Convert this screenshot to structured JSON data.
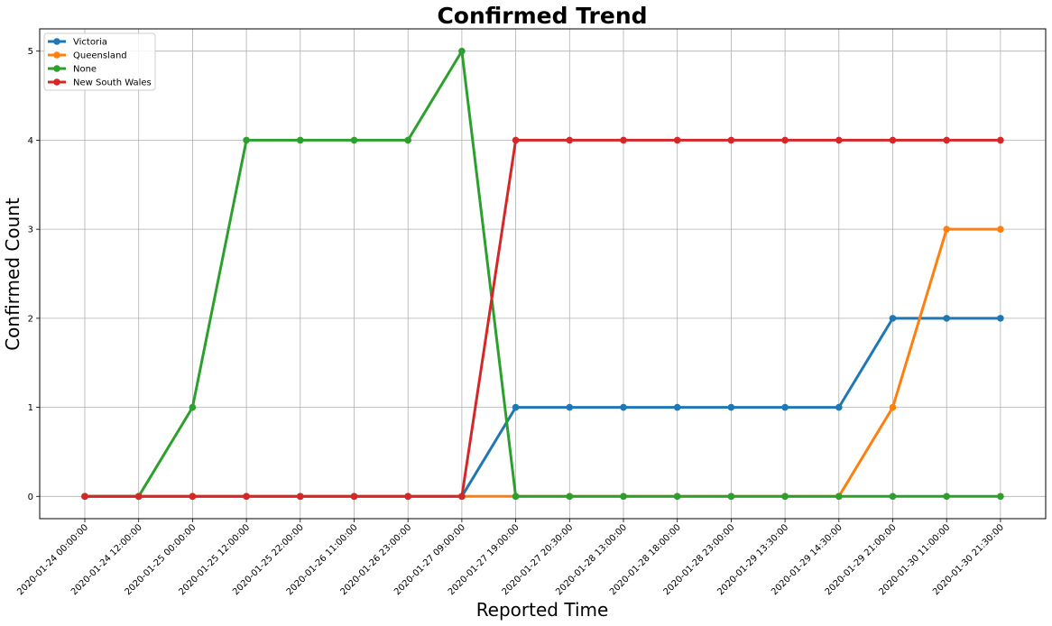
{
  "chart_data": {
    "type": "line",
    "title": "Confirmed Trend",
    "xlabel": "Reported Time",
    "ylabel": "Confirmed Count",
    "ylim": [
      -0.25,
      5.25
    ],
    "yticks": [
      0,
      1,
      2,
      3,
      4,
      5
    ],
    "grid": true,
    "legend_position": "top-left",
    "categories": [
      "2020-01-24 00:00:00",
      "2020-01-24 12:00:00",
      "2020-01-25 00:00:00",
      "2020-01-25 12:00:00",
      "2020-01-25 22:00:00",
      "2020-01-26 11:00:00",
      "2020-01-26 23:00:00",
      "2020-01-27 09:00:00",
      "2020-01-27 19:00:00",
      "2020-01-27 20:30:00",
      "2020-01-28 13:00:00",
      "2020-01-28 18:00:00",
      "2020-01-28 23:00:00",
      "2020-01-29 13:30:00",
      "2020-01-29 14:30:00",
      "2020-01-29 21:00:00",
      "2020-01-30 11:00:00",
      "2020-01-30 21:30:00"
    ],
    "series": [
      {
        "name": "Victoria",
        "color": "#1f77b4",
        "values": [
          0,
          0,
          0,
          0,
          0,
          0,
          0,
          0,
          1,
          1,
          1,
          1,
          1,
          1,
          1,
          2,
          2,
          2
        ]
      },
      {
        "name": "Queensland",
        "color": "#ff7f0e",
        "values": [
          0,
          0,
          0,
          0,
          0,
          0,
          0,
          0,
          0,
          0,
          0,
          0,
          0,
          0,
          0,
          1,
          3,
          3
        ]
      },
      {
        "name": "None",
        "color": "#2ca02c",
        "values": [
          0,
          0,
          1,
          4,
          4,
          4,
          4,
          5,
          0,
          0,
          0,
          0,
          0,
          0,
          0,
          0,
          0,
          0
        ]
      },
      {
        "name": "New South Wales",
        "color": "#d62728",
        "values": [
          0,
          0,
          0,
          0,
          0,
          0,
          0,
          0,
          4,
          4,
          4,
          4,
          4,
          4,
          4,
          4,
          4,
          4
        ]
      }
    ]
  }
}
